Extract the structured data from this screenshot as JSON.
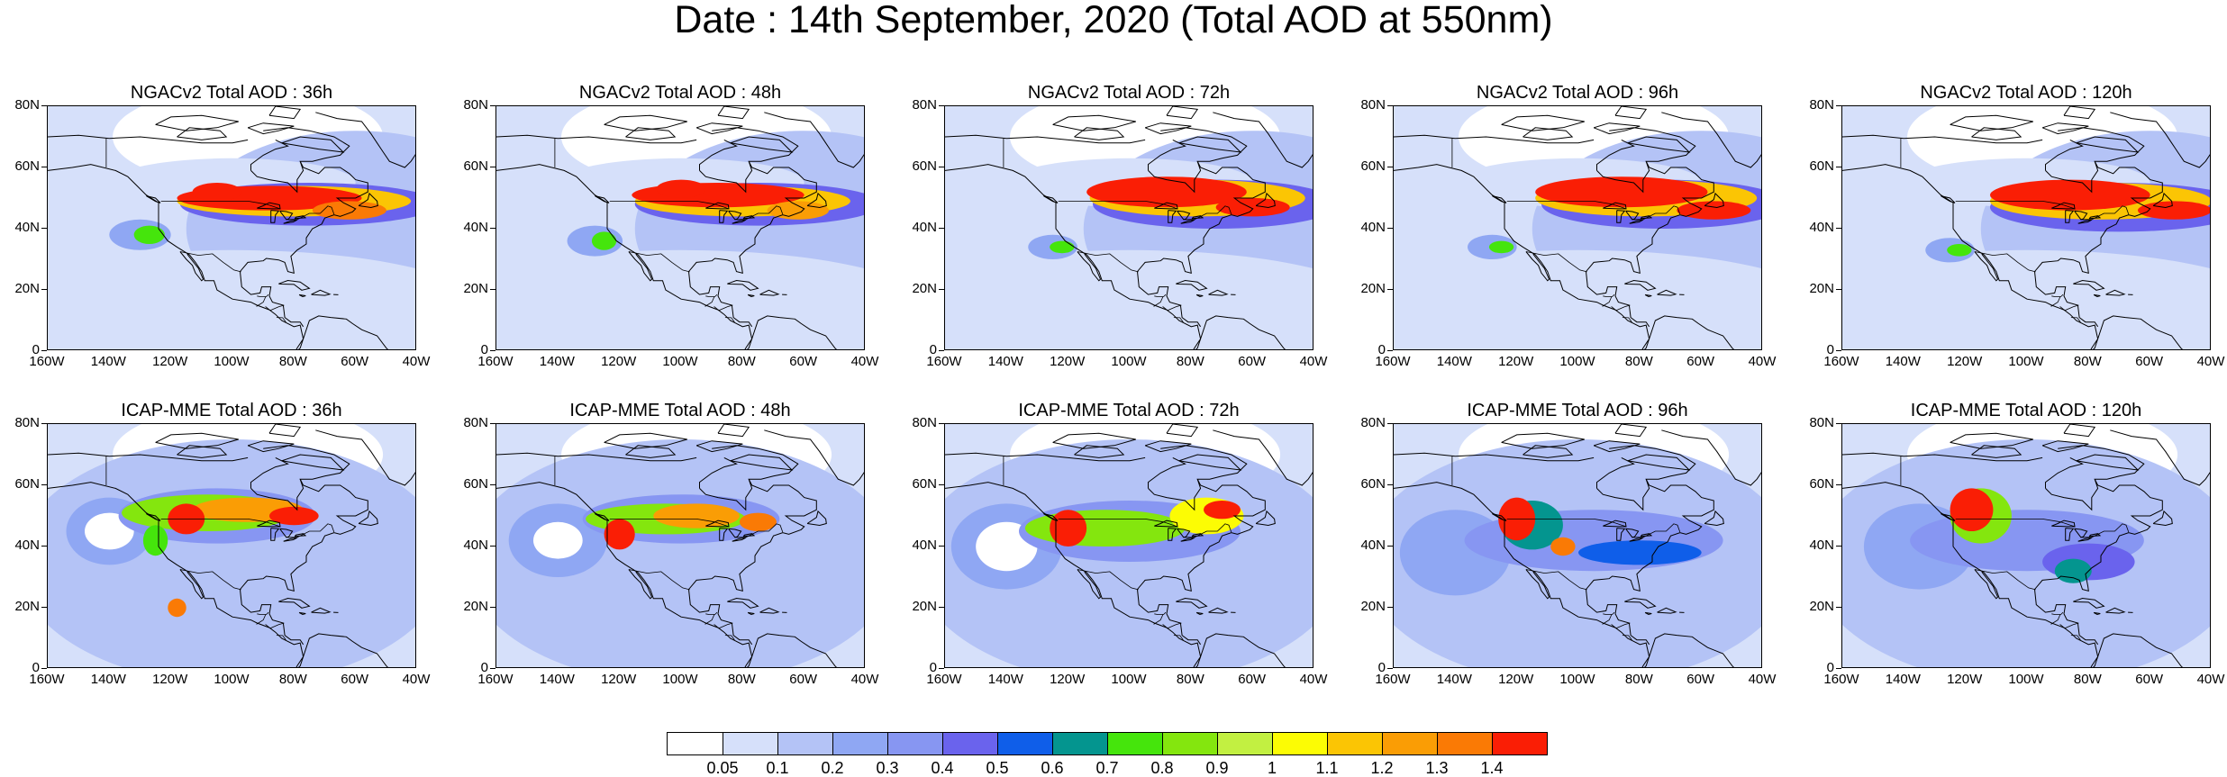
{
  "figure_title": "Date : 14th September, 2020 (Total AOD at 550nm)",
  "lat_labels": [
    "80N",
    "60N",
    "40N",
    "20N",
    "0"
  ],
  "lon_labels": [
    "160W",
    "140W",
    "120W",
    "100W",
    "80W",
    "60W",
    "40W"
  ],
  "rows": [
    {
      "model": "NGACv2",
      "panels": [
        {
          "title": "NGACv2 Total AOD : 36h",
          "forecast_hour": 36
        },
        {
          "title": "NGACv2 Total AOD : 48h",
          "forecast_hour": 48
        },
        {
          "title": "NGACv2 Total AOD : 72h",
          "forecast_hour": 72
        },
        {
          "title": "NGACv2 Total AOD : 96h",
          "forecast_hour": 96
        },
        {
          "title": "NGACv2 Total AOD : 120h",
          "forecast_hour": 120
        }
      ]
    },
    {
      "model": "ICAP-MME",
      "panels": [
        {
          "title": "ICAP-MME Total AOD : 36h",
          "forecast_hour": 36
        },
        {
          "title": "ICAP-MME Total AOD : 48h",
          "forecast_hour": 48
        },
        {
          "title": "ICAP-MME Total AOD : 72h",
          "forecast_hour": 72
        },
        {
          "title": "ICAP-MME Total AOD : 96h",
          "forecast_hour": 96
        },
        {
          "title": "ICAP-MME Total AOD : 120h",
          "forecast_hour": 120
        }
      ]
    }
  ],
  "colorbar": {
    "colors": [
      "#ffffff",
      "#d6e0fa",
      "#b4c3f6",
      "#8fa7f3",
      "#8796f2",
      "#6a63ed",
      "#0f5ee9",
      "#04958f",
      "#45e50c",
      "#84e60e",
      "#c2f041",
      "#fcfc04",
      "#fbc504",
      "#fa9d05",
      "#fa7a05",
      "#fa1e05"
    ],
    "labels": [
      "0.05",
      "0.1",
      "0.2",
      "0.3",
      "0.4",
      "0.5",
      "0.6",
      "0.7",
      "0.8",
      "0.9",
      "1",
      "1.1",
      "1.2",
      "1.3",
      "1.4"
    ]
  }
}
